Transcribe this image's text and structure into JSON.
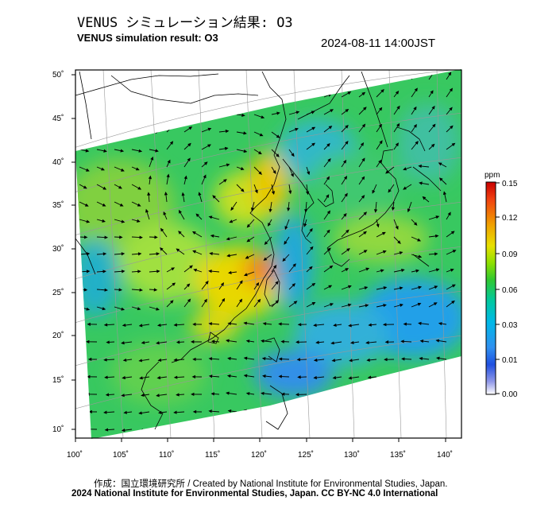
{
  "header": {
    "title_jp": "VENUS シミュレーション結果: O3",
    "title_en": "VENUS simulation result: O3",
    "timestamp": "2024-08-11 14:00JST"
  },
  "map": {
    "lon_ticks": [
      "100˚",
      "105˚",
      "110˚",
      "115˚",
      "120˚",
      "125˚",
      "130˚",
      "135˚",
      "140˚"
    ],
    "lat_ticks": [
      "50˚",
      "45˚",
      "40˚",
      "35˚",
      "30˚",
      "25˚",
      "20˚",
      "15˚",
      "10˚"
    ]
  },
  "colorbar": {
    "unit": "ppm",
    "labels": [
      "0.15",
      "0.12",
      "0.09",
      "0.06",
      "0.03",
      "0.01",
      "0.00"
    ],
    "colors": [
      "#d40000",
      "#f06010",
      "#f0b000",
      "#e8e000",
      "#a0e000",
      "#30c830",
      "#00c8a0",
      "#00b8e0",
      "#3090f0",
      "#2050e0",
      "#8090e0",
      "#ffffff"
    ]
  },
  "footer": {
    "credit": "作成：国立環境研究所 / Created by National Institute for Environmental Studies, Japan.",
    "copyright": "2024 National Institute for Environmental Studies, Japan. CC BY-NC 4.0 International"
  }
}
